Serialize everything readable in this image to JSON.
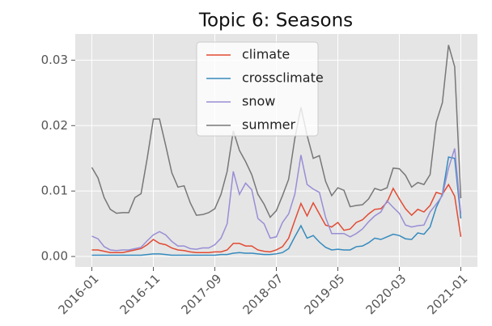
{
  "chart_data": {
    "type": "line",
    "title": "Topic 6: Seasons",
    "x": [
      "2016-01",
      "2016-02",
      "2016-03",
      "2016-04",
      "2016-05",
      "2016-06",
      "2016-07",
      "2016-08",
      "2016-09",
      "2016-10",
      "2016-11",
      "2016-12",
      "2017-01",
      "2017-02",
      "2017-03",
      "2017-04",
      "2017-05",
      "2017-06",
      "2017-07",
      "2017-08",
      "2017-09",
      "2017-10",
      "2017-11",
      "2017-12",
      "2018-01",
      "2018-02",
      "2018-03",
      "2018-04",
      "2018-05",
      "2018-06",
      "2018-07",
      "2018-08",
      "2018-09",
      "2018-10",
      "2018-11",
      "2018-12",
      "2019-01",
      "2019-02",
      "2019-03",
      "2019-04",
      "2019-05",
      "2019-06",
      "2019-07",
      "2019-08",
      "2019-09",
      "2019-10",
      "2019-11",
      "2019-12",
      "2020-01",
      "2020-02",
      "2020-03",
      "2020-04",
      "2020-05",
      "2020-06",
      "2020-07",
      "2020-08",
      "2020-09",
      "2020-10",
      "2020-11",
      "2020-12",
      "2021-01"
    ],
    "series": [
      {
        "name": "climate",
        "color": "#E24A33",
        "values": [
          0.001,
          0.001,
          0.0008,
          0.0006,
          0.0006,
          0.0006,
          0.0008,
          0.001,
          0.0012,
          0.0018,
          0.0026,
          0.002,
          0.0018,
          0.0013,
          0.001,
          0.0009,
          0.0007,
          0.0006,
          0.0006,
          0.0006,
          0.0007,
          0.0007,
          0.001,
          0.002,
          0.002,
          0.0016,
          0.0016,
          0.001,
          0.0008,
          0.0007,
          0.001,
          0.0015,
          0.0028,
          0.0055,
          0.0081,
          0.0062,
          0.0082,
          0.0065,
          0.0048,
          0.0045,
          0.0052,
          0.004,
          0.0042,
          0.0052,
          0.0056,
          0.0065,
          0.0072,
          0.0073,
          0.0083,
          0.0104,
          0.0088,
          0.0073,
          0.0063,
          0.0072,
          0.0068,
          0.0078,
          0.0098,
          0.0095,
          0.011,
          0.0092,
          0.003
        ]
      },
      {
        "name": "crossclimate",
        "color": "#348ABD",
        "values": [
          0.0002,
          0.0002,
          0.0002,
          0.0002,
          0.0002,
          0.0002,
          0.0002,
          0.0002,
          0.0002,
          0.0003,
          0.0004,
          0.0004,
          0.0003,
          0.0002,
          0.0002,
          0.0002,
          0.0002,
          0.0002,
          0.0002,
          0.0002,
          0.0002,
          0.0003,
          0.0003,
          0.0005,
          0.0006,
          0.0005,
          0.0005,
          0.0004,
          0.0003,
          0.0003,
          0.0004,
          0.0006,
          0.0012,
          0.003,
          0.0047,
          0.0028,
          0.0032,
          0.0022,
          0.0014,
          0.001,
          0.0011,
          0.001,
          0.001,
          0.0015,
          0.0016,
          0.0021,
          0.0028,
          0.0026,
          0.003,
          0.0034,
          0.0032,
          0.0027,
          0.0026,
          0.0036,
          0.0034,
          0.0045,
          0.0075,
          0.0095,
          0.0152,
          0.015,
          0.0058
        ]
      },
      {
        "name": "snow",
        "color": "#988ED5",
        "values": [
          0.0031,
          0.0027,
          0.0015,
          0.001,
          0.0009,
          0.001,
          0.001,
          0.0012,
          0.0014,
          0.0024,
          0.0033,
          0.0038,
          0.0033,
          0.0023,
          0.0016,
          0.0016,
          0.0012,
          0.0011,
          0.0013,
          0.0013,
          0.0018,
          0.0028,
          0.005,
          0.013,
          0.0095,
          0.0112,
          0.0102,
          0.0058,
          0.005,
          0.0028,
          0.003,
          0.0052,
          0.0065,
          0.0095,
          0.0155,
          0.011,
          0.0103,
          0.0098,
          0.006,
          0.0035,
          0.0035,
          0.0035,
          0.003,
          0.0035,
          0.0042,
          0.0053,
          0.0062,
          0.0068,
          0.0085,
          0.0075,
          0.0066,
          0.0048,
          0.0045,
          0.0047,
          0.0048,
          0.0068,
          0.008,
          0.0093,
          0.0135,
          0.0165,
          0.0065
        ]
      },
      {
        "name": "summer",
        "color": "#777777",
        "values": [
          0.0136,
          0.012,
          0.009,
          0.0072,
          0.0066,
          0.0067,
          0.0067,
          0.009,
          0.0096,
          0.015,
          0.021,
          0.021,
          0.017,
          0.0128,
          0.0106,
          0.0108,
          0.0082,
          0.0063,
          0.0064,
          0.0067,
          0.0073,
          0.0095,
          0.013,
          0.0192,
          0.0162,
          0.0145,
          0.0125,
          0.0095,
          0.008,
          0.006,
          0.007,
          0.0093,
          0.0118,
          0.018,
          0.0228,
          0.0185,
          0.015,
          0.0154,
          0.0115,
          0.0093,
          0.0105,
          0.0101,
          0.0076,
          0.0078,
          0.0079,
          0.0088,
          0.0104,
          0.0101,
          0.0105,
          0.0135,
          0.0134,
          0.0124,
          0.0106,
          0.0113,
          0.011,
          0.0125,
          0.0205,
          0.0235,
          0.0323,
          0.029,
          0.0089
        ]
      }
    ],
    "ylim": [
      -0.0016,
      0.034
    ],
    "yticks": [
      {
        "value": 0,
        "label": "0.00"
      },
      0.01,
      0.02,
      0.03
    ],
    "grid": true,
    "legend": "upper center"
  }
}
